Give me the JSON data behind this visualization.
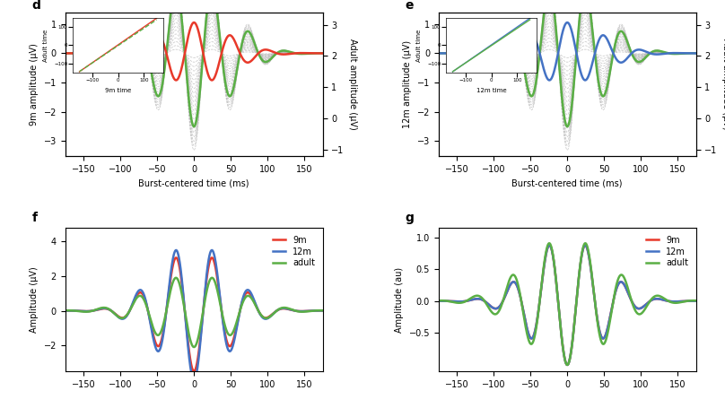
{
  "colors": {
    "red": "#E8392A",
    "blue": "#4472C4",
    "green": "#5AAF45",
    "gray_dashed": "#B0B0B0"
  },
  "xlim": [
    -175,
    175
  ],
  "xticks": [
    -150,
    -100,
    -50,
    0,
    50,
    100,
    150
  ],
  "xlabel": "Burst-centered time (ms)",
  "panel_d": {
    "label": "d",
    "ylabel_left": "9m amplitude (μV)",
    "ylabel_right": "Adult amplitude (μV)",
    "ylim_left": [
      -3.5,
      1.4
    ],
    "ylim_right": [
      -1.2,
      3.4
    ],
    "yticks_left": [
      -3,
      -2,
      -1,
      0,
      1
    ],
    "yticks_right": [
      -1,
      0,
      1,
      2,
      3
    ],
    "inset_xlabel": "9m time",
    "inset_ylabel": "Adult time"
  },
  "panel_e": {
    "label": "e",
    "ylabel_left": "12m amplitude (μV)",
    "ylabel_right": "Adult amplitude (μV)",
    "ylim_left": [
      -3.5,
      1.4
    ],
    "ylim_right": [
      -1.2,
      3.4
    ],
    "yticks_left": [
      -3,
      -2,
      -1,
      0,
      1
    ],
    "yticks_right": [
      -1,
      0,
      1,
      2,
      3
    ],
    "inset_xlabel": "12m time",
    "inset_ylabel": "Adult time"
  },
  "panel_f": {
    "label": "f",
    "ylabel": "Amplitude (μV)",
    "ylim": [
      -3.5,
      4.8
    ],
    "yticks": [
      -2,
      0,
      2,
      4
    ],
    "legend": [
      "9m",
      "12m",
      "adult"
    ]
  },
  "panel_g": {
    "label": "g",
    "ylabel": "Amplitude (au)",
    "ylim": [
      -1.1,
      1.15
    ],
    "yticks": [
      -0.5,
      0.0,
      0.5,
      1.0
    ],
    "legend": [
      "9m",
      "12m",
      "adult"
    ]
  }
}
